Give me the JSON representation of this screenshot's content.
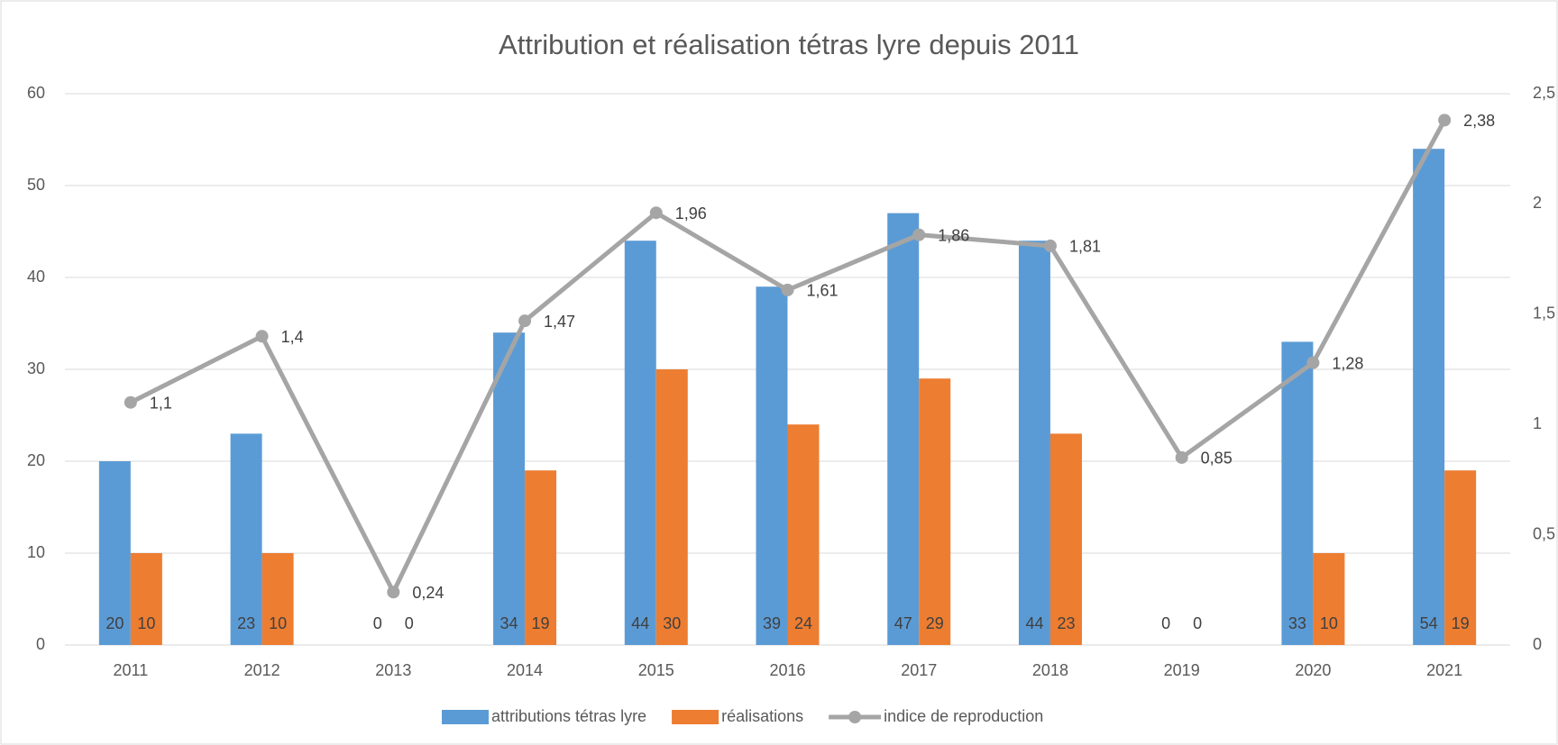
{
  "chart_data": {
    "type": "bar-line",
    "title": "Attribution et réalisation tétras lyre depuis 2011",
    "categories": [
      "2011",
      "2012",
      "2013",
      "2014",
      "2015",
      "2016",
      "2017",
      "2018",
      "2019",
      "2020",
      "2021"
    ],
    "series": [
      {
        "name": "attributions tétras lyre",
        "color": "#5b9bd5",
        "type": "bar",
        "values": [
          20,
          23,
          0,
          34,
          44,
          39,
          47,
          44,
          0,
          33,
          54
        ]
      },
      {
        "name": "réalisations",
        "color": "#ed7d31",
        "type": "bar",
        "values": [
          10,
          10,
          0,
          19,
          30,
          24,
          29,
          23,
          0,
          10,
          19
        ]
      },
      {
        "name": "indice de reproduction",
        "color": "#a5a5a5",
        "type": "line",
        "axis": "y2",
        "values": [
          1.1,
          1.4,
          0.24,
          1.47,
          1.96,
          1.61,
          1.86,
          1.81,
          0.85,
          1.28,
          2.38
        ],
        "value_labels": [
          "1,1",
          "1,4",
          "0,24",
          "1,47",
          "1,96",
          "1,61",
          "1,86",
          "1,81",
          "0,85",
          "1,28",
          "2,38"
        ]
      }
    ],
    "ylim": [
      0,
      60
    ],
    "yticks": [
      0,
      10,
      20,
      30,
      40,
      50,
      60
    ],
    "y2lim": [
      0,
      2.5
    ],
    "y2ticks": [
      0,
      {
        "value": 0.5,
        "label": "0,5"
      },
      1,
      {
        "value": 1.5,
        "label": "1,5"
      },
      2,
      {
        "value": 2.5,
        "label": "2,5"
      }
    ],
    "grid": true,
    "legend": "bottom"
  }
}
